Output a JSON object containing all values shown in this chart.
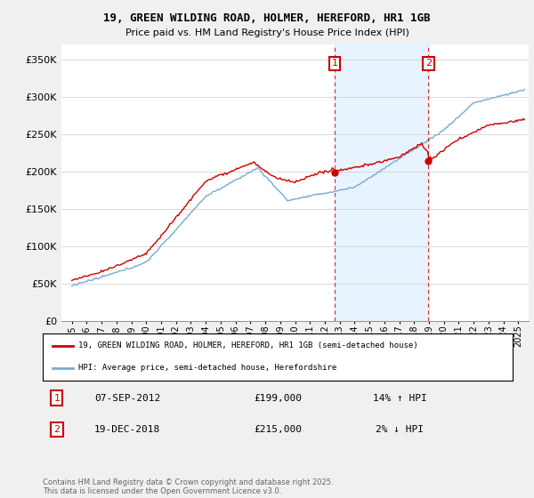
{
  "title": "19, GREEN WILDING ROAD, HOLMER, HEREFORD, HR1 1GB",
  "subtitle": "Price paid vs. HM Land Registry's House Price Index (HPI)",
  "ylim": [
    0,
    370000
  ],
  "yticks": [
    0,
    50000,
    100000,
    150000,
    200000,
    250000,
    300000,
    350000
  ],
  "ytick_labels": [
    "£0",
    "£50K",
    "£100K",
    "£150K",
    "£200K",
    "£250K",
    "£300K",
    "£350K"
  ],
  "sale1_year": 2012.67,
  "sale1_price": 199000,
  "sale1_label": "07-SEP-2012",
  "sale1_hpi_pct": "14% ↑ HPI",
  "sale2_year": 2018.96,
  "sale2_price": 215000,
  "sale2_label": "19-DEC-2018",
  "sale2_hpi_pct": "2% ↓ HPI",
  "line_color_property": "#cc0000",
  "line_color_hpi": "#7aaad0",
  "shade_color": "#ddeeff",
  "marker_box_color": "#cc0000",
  "legend_label_property": "19, GREEN WILDING ROAD, HOLMER, HEREFORD, HR1 1GB (semi-detached house)",
  "legend_label_hpi": "HPI: Average price, semi-detached house, Herefordshire",
  "footnote": "Contains HM Land Registry data © Crown copyright and database right 2025.\nThis data is licensed under the Open Government Licence v3.0.",
  "background_color": "#f0f0f0"
}
